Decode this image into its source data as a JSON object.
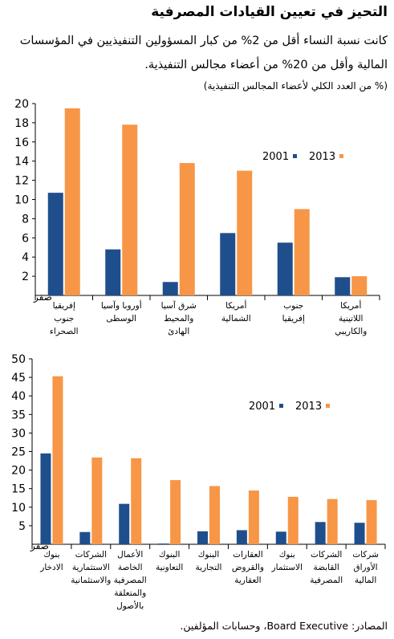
{
  "title": "التحيز في تعيين القيادات المصرفية",
  "subtitle": "كانت نسبة النساء أقل من 2% من كبار المسؤولين التنفيذيين في المؤسسات المالية وأقل من 20% من أعضاء مجالس التنفيذية.",
  "unit_note": "(% من العدد الكلي لأعضاء المجالس التنفيذية)",
  "source": "المصادر: Board Executive، وحسابات المؤلفين.",
  "colors": {
    "series_2001": "#1f4e8c",
    "series_2013": "#f79646",
    "axis": "#000000"
  },
  "chart_data": [
    {
      "type": "bar",
      "title": "",
      "xlabel": "",
      "ylabel": "",
      "ylim": [
        0,
        20
      ],
      "yticks": [
        2,
        4,
        6,
        8,
        10,
        12,
        14,
        16,
        18,
        20
      ],
      "zero_label": "صفر",
      "grid": false,
      "legend_position": "top-right",
      "categories": [
        [
          "إفريقيا",
          "جنوب",
          "الصحراء"
        ],
        [
          "أوروبا وآسيا",
          "الوسطى"
        ],
        [
          "شرق آسيا",
          "والمحيط",
          "الهادئ"
        ],
        [
          "أمريكا",
          "الشمالية"
        ],
        [
          "جنوب",
          "إفريقيا"
        ],
        [
          "أمريكا",
          "اللاتينية",
          "والكاريبي"
        ]
      ],
      "series": [
        {
          "name": "2001",
          "values": [
            10.7,
            4.8,
            1.4,
            6.5,
            5.5,
            1.9
          ]
        },
        {
          "name": "2013",
          "values": [
            19.5,
            17.8,
            13.8,
            13.0,
            9.0,
            2.0
          ]
        }
      ]
    },
    {
      "type": "bar",
      "title": "",
      "xlabel": "",
      "ylabel": "",
      "ylim": [
        0,
        50
      ],
      "yticks": [
        5,
        10,
        15,
        20,
        25,
        30,
        35,
        40,
        45,
        50
      ],
      "zero_label": "صفر",
      "grid": false,
      "legend_position": "top-right",
      "categories": [
        [
          "بنوك",
          "الادخار"
        ],
        [
          "الشركات",
          "الاستثمارية",
          "والاستئمانية"
        ],
        [
          "الأعمال",
          "الخاصة",
          "المصرفية",
          "والمتعلقة",
          "بالأصول"
        ],
        [
          "البنوك",
          "التعاونية"
        ],
        [
          "البنوك",
          "التجارية"
        ],
        [
          "العقارات",
          "والقروض",
          "العقارية"
        ],
        [
          "بنوك",
          "الاستثمار"
        ],
        [
          "الشركات",
          "القابضة",
          "المصرفية"
        ],
        [
          "شركات",
          "الأوراق",
          "المالية"
        ]
      ],
      "series": [
        {
          "name": "2001",
          "values": [
            24.5,
            3.3,
            10.9,
            0.2,
            3.5,
            3.8,
            3.4,
            6.0,
            5.8
          ]
        },
        {
          "name": "2013",
          "values": [
            45.3,
            23.4,
            23.2,
            17.3,
            15.7,
            14.5,
            12.8,
            12.2,
            11.9
          ]
        }
      ]
    }
  ]
}
